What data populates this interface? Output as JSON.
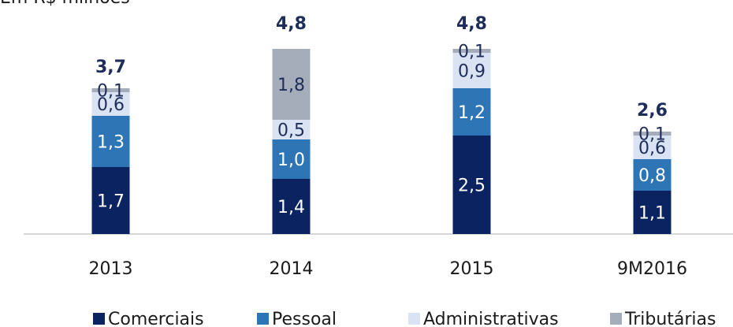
{
  "chart_data": {
    "type": "stacked_bar",
    "title": "Em R$ milhões",
    "categories": [
      "2013",
      "2014",
      "2015",
      "9M2016"
    ],
    "series": [
      {
        "name": "Comerciais",
        "color": "#0b2360",
        "values": [
          1.7,
          1.4,
          2.5,
          1.1
        ],
        "value_labels": [
          "1,7",
          "1,4",
          "2,5",
          "1,1"
        ]
      },
      {
        "name": "Pessoal",
        "color": "#2e75b6",
        "values": [
          1.3,
          1.0,
          1.2,
          0.8
        ],
        "value_labels": [
          "1,3",
          "1,0",
          "1,2",
          "0,8"
        ]
      },
      {
        "name": "Administrativas",
        "color": "#dae3f3",
        "values": [
          0.6,
          0.5,
          0.9,
          0.6
        ],
        "value_labels": [
          "0,6",
          "0,5",
          "0,9",
          "0,6"
        ]
      },
      {
        "name": "Tributárias",
        "color": "#a5adbb",
        "values": [
          0.1,
          1.8,
          0.1,
          0.1
        ],
        "value_labels": [
          "0,1",
          "1,8",
          "0,1",
          "0,1"
        ]
      }
    ],
    "totals": [
      3.7,
      4.8,
      4.8,
      2.6
    ],
    "total_labels": [
      "3,7",
      "4,8",
      "4,8",
      "2,6"
    ],
    "legend": "bottom"
  }
}
